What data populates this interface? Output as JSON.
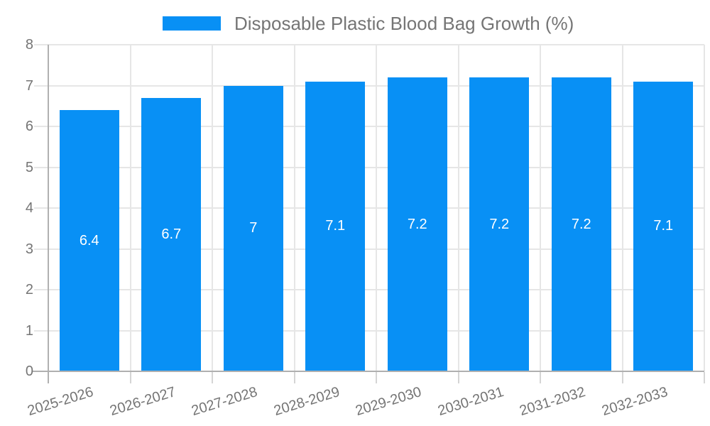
{
  "legend": {
    "label": "Disposable Plastic Blood Bag Growth (%)"
  },
  "chart_data": {
    "type": "bar",
    "title": "Disposable Plastic Blood Bag Growth (%)",
    "categories": [
      "2025-2026",
      "2026-2027",
      "2027-2028",
      "2028-2029",
      "2029-2030",
      "2030-2031",
      "2031-2032",
      "2032-2033"
    ],
    "values": [
      6.4,
      6.7,
      7,
      7.1,
      7.2,
      7.2,
      7.2,
      7.1
    ],
    "value_labels": [
      "6.4",
      "6.7",
      "7",
      "7.1",
      "7.2",
      "7.2",
      "7.2",
      "7.1"
    ],
    "xlabel": "",
    "ylabel": "",
    "ylim": [
      0,
      8
    ],
    "yticks": [
      0,
      1,
      2,
      3,
      4,
      5,
      6,
      7,
      8
    ],
    "grid": true,
    "legend_position": "top",
    "value_labels_inside_bars": true
  },
  "colors": {
    "background": "#ffffff",
    "bar": "#0890f5",
    "gridline": "#e6e6e6",
    "axis_line": "#b0b0b0",
    "tick_mark": "#d5d5d5",
    "tick_label": "#757575",
    "legend_text": "#757575",
    "value_label": "#ffffff"
  }
}
